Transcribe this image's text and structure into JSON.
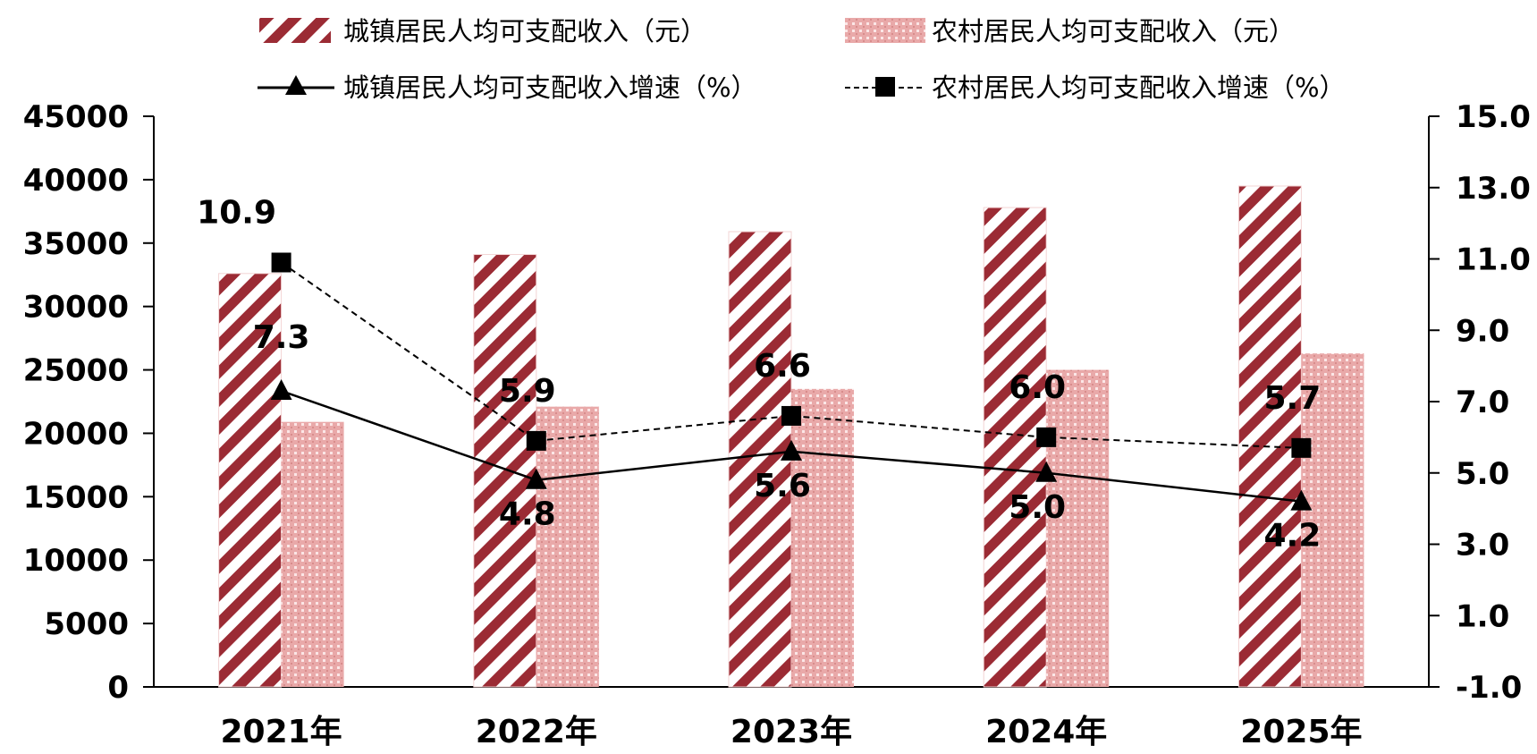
{
  "chart_data": {
    "type": "bar",
    "categories": [
      "2021年",
      "2022年",
      "2023年",
      "2024年",
      "2025年"
    ],
    "series": [
      {
        "name": "城镇居民人均可支配收入（元）",
        "kind": "bar",
        "axis": "left",
        "pattern": "diagonal-stripes",
        "values": [
          32600,
          34100,
          35900,
          37800,
          39500
        ]
      },
      {
        "name": "农村居民人均可支配收入（元）",
        "kind": "bar",
        "axis": "left",
        "pattern": "dotted",
        "values": [
          20900,
          22100,
          23500,
          25000,
          26300
        ]
      },
      {
        "name": "城镇居民人均可支配收入增速（%）",
        "kind": "line",
        "axis": "right",
        "line_style": "solid",
        "marker": "triangle",
        "values": [
          7.3,
          4.8,
          5.6,
          5.0,
          4.2
        ],
        "labels": [
          "7.3",
          "4.8",
          "5.6",
          "5.0",
          "4.2"
        ]
      },
      {
        "name": "农村居民人均可支配收入增速（%）",
        "kind": "line",
        "axis": "right",
        "line_style": "dashed",
        "marker": "square",
        "values": [
          10.9,
          5.9,
          6.6,
          6.0,
          5.7
        ],
        "labels": [
          "10.9",
          "5.9",
          "6.6",
          "6.0",
          "5.7"
        ]
      }
    ],
    "y_left": {
      "min": 0,
      "max": 45000,
      "ticks": [
        "0",
        "5000",
        "10000",
        "15000",
        "20000",
        "25000",
        "30000",
        "35000",
        "40000",
        "45000"
      ]
    },
    "y_right": {
      "min": -1.0,
      "max": 15.0,
      "ticks": [
        "-1.0",
        "1.0",
        "3.0",
        "5.0",
        "7.0",
        "9.0",
        "11.0",
        "13.0",
        "15.0"
      ]
    },
    "legend_position": "top",
    "grid": false,
    "colors": {
      "bar": "#9b2b34",
      "bar_light": "#e9a9a9",
      "line": "#000000"
    }
  }
}
